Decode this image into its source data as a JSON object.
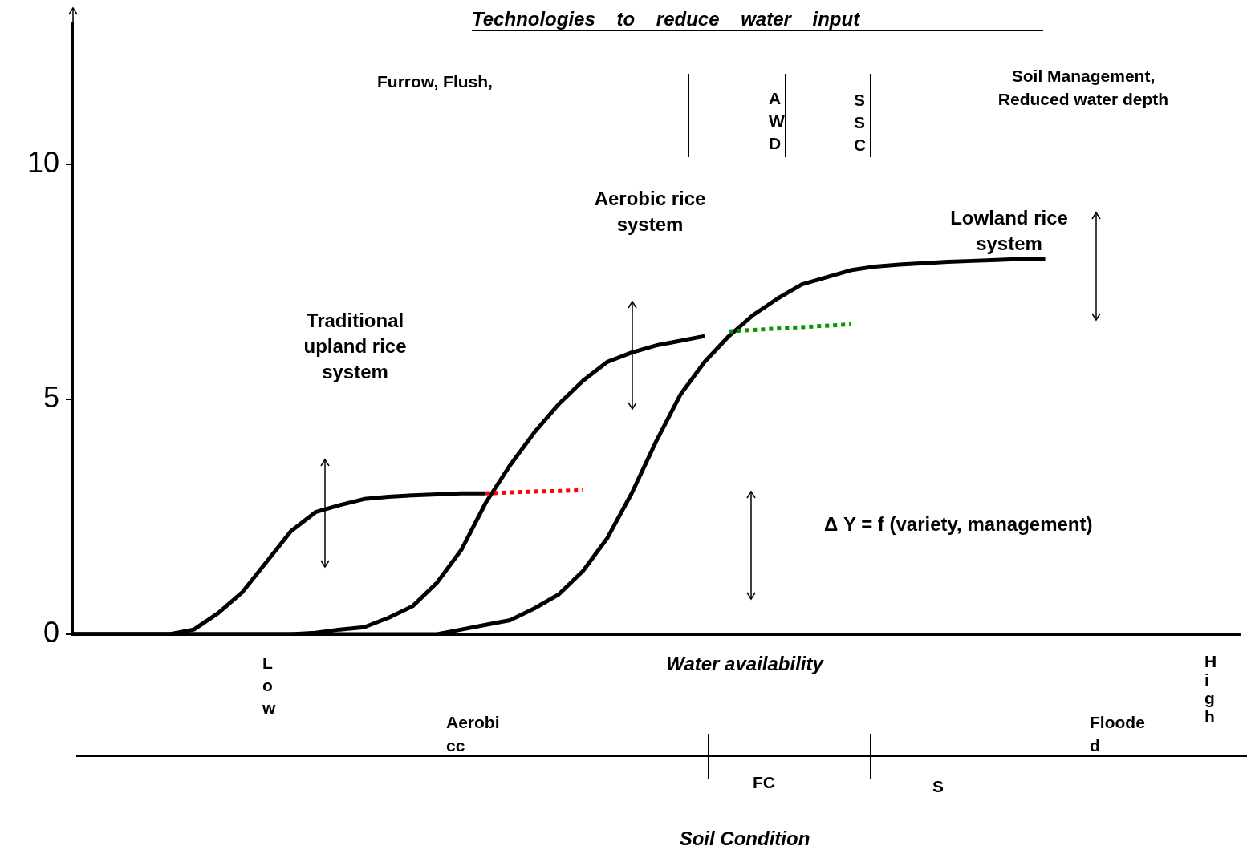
{
  "chart_data": {
    "type": "line",
    "title": "Technologies to reduce water input",
    "xlabel": "Water availability",
    "categories": [
      null,
      null,
      null,
      null,
      null,
      null,
      null,
      null,
      null,
      null,
      null,
      null,
      null,
      null,
      null,
      null,
      null,
      null,
      null,
      null,
      null,
      null,
      null,
      null,
      null,
      null,
      null,
      null,
      null,
      null,
      null,
      null,
      null,
      null,
      null,
      null,
      null,
      null,
      null,
      null,
      null,
      null,
      null,
      null,
      null,
      null,
      null,
      null,
      null
    ],
    "series": [
      {
        "color": "#000000",
        "line_style": "solid",
        "values": [
          0,
          0,
          0,
          0,
          0,
          0.1,
          0.45,
          0.9,
          1.55,
          2.2,
          2.6,
          2.75,
          2.88,
          2.93,
          2.96,
          2.98,
          3.0,
          3.0,
          null,
          null,
          null,
          null,
          null,
          null,
          null,
          null,
          null,
          null,
          null,
          null,
          null,
          null,
          null,
          null,
          null,
          null,
          null,
          null,
          null,
          null,
          null,
          null,
          null,
          null,
          null,
          null,
          null,
          null,
          null
        ]
      },
      {
        "color": "#ff0000",
        "line_style": "dotted",
        "values": [
          null,
          null,
          null,
          null,
          null,
          null,
          null,
          null,
          null,
          null,
          null,
          null,
          null,
          null,
          null,
          null,
          null,
          3.0,
          3.02,
          3.04,
          3.05,
          3.07,
          null,
          null,
          null,
          null,
          null,
          null,
          null,
          null,
          null,
          null,
          null,
          null,
          null,
          null,
          null,
          null,
          null,
          null,
          null,
          null,
          null,
          null,
          null,
          null,
          null,
          null,
          null
        ]
      },
      {
        "color": "#000000",
        "line_style": "solid",
        "values": [
          0,
          0,
          0,
          0,
          0,
          0,
          0,
          0,
          0,
          0,
          0.03,
          0.1,
          0.15,
          0.35,
          0.6,
          1.1,
          1.8,
          2.8,
          3.6,
          4.3,
          4.9,
          5.4,
          5.8,
          6.0,
          6.15,
          6.25,
          6.35,
          null,
          null,
          null,
          null,
          null,
          null,
          null,
          null,
          null,
          null,
          null,
          null,
          null,
          null,
          null,
          null,
          null,
          null,
          null,
          null,
          null,
          null
        ]
      },
      {
        "color": "#009900",
        "line_style": "dotted",
        "values": [
          null,
          null,
          null,
          null,
          null,
          null,
          null,
          null,
          null,
          null,
          null,
          null,
          null,
          null,
          null,
          null,
          null,
          null,
          null,
          null,
          null,
          null,
          null,
          null,
          null,
          null,
          null,
          6.45,
          6.48,
          6.51,
          6.54,
          6.57,
          6.6,
          null,
          null,
          null,
          null,
          null,
          null,
          null,
          null,
          null,
          null,
          null,
          null,
          null,
          null,
          null,
          null
        ]
      },
      {
        "color": "#000000",
        "line_style": "solid",
        "values": [
          0,
          0,
          0,
          0,
          0,
          0,
          0,
          0,
          0,
          0,
          0,
          0,
          0,
          0,
          0,
          0,
          0.1,
          0.2,
          0.3,
          0.55,
          0.85,
          1.35,
          2.05,
          3.0,
          4.1,
          5.1,
          5.8,
          6.35,
          6.8,
          7.15,
          7.45,
          7.6,
          7.75,
          7.83,
          7.87,
          7.9,
          7.93,
          7.95,
          7.97,
          7.99,
          8.0,
          null,
          null,
          null,
          null,
          null,
          null,
          null,
          null
        ]
      }
    ],
    "ylim": [
      0,
      13
    ],
    "yticks": [
      0,
      5,
      10
    ],
    "tick_labels": "y",
    "marker": "none",
    "annotations": [
      "Furrow, Flush,",
      "AWD",
      "SSC",
      "Soil Management, Reduced water depth",
      "Aerobic rice system",
      "Lowland rice system",
      "Traditional upland rice system",
      "Δ Y = f (variety, management)",
      "Low",
      "High",
      "Aerobicc",
      "Flooded",
      "FC",
      "S",
      "Soil Condition"
    ]
  }
}
